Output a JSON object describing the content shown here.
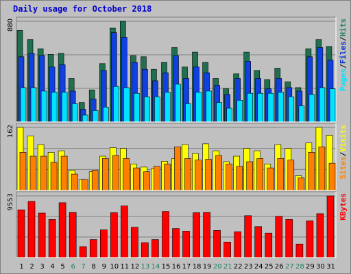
{
  "chart_data": {
    "type": "bar",
    "title": "Daily usage for October 2018",
    "categories": [
      "1",
      "2",
      "3",
      "4",
      "5",
      "6",
      "7",
      "8",
      "9",
      "10",
      "11",
      "12",
      "13",
      "14",
      "15",
      "16",
      "17",
      "18",
      "19",
      "20",
      "21",
      "22",
      "23",
      "24",
      "25",
      "26",
      "27",
      "28",
      "29",
      "30",
      "31"
    ],
    "weekend_days": [
      "6",
      "7",
      "13",
      "14",
      "20",
      "21",
      "27",
      "28"
    ],
    "panels": [
      {
        "name": "top",
        "ymax_label": "880",
        "ymax": 880,
        "right_labels": [
          "Pages",
          "/",
          "Files",
          "/",
          "Hits"
        ],
        "right_label_colors": [
          "#00e0ff",
          "#000000",
          "#0033cc",
          "#000000",
          "#208060"
        ],
        "series": [
          {
            "name": "Hits",
            "color": "#207050",
            "values": [
              800,
              720,
              640,
              590,
              600,
              380,
              170,
              280,
              510,
              820,
              880,
              580,
              570,
              460,
              520,
              650,
              480,
              610,
              520,
              380,
              290,
              420,
              610,
              450,
              370,
              470,
              350,
              300,
              640,
              720,
              660
            ]
          },
          {
            "name": "Files",
            "color": "#1040e0",
            "values": [
              570,
              600,
              580,
              480,
              500,
              270,
              110,
              200,
              450,
              780,
              740,
              520,
              460,
              360,
              430,
              580,
              380,
              480,
              430,
              320,
              240,
              380,
              530,
              380,
              290,
              380,
              300,
              270,
              570,
              650,
              540
            ]
          },
          {
            "name": "Pages",
            "color": "#00e0ff",
            "values": [
              300,
              300,
              270,
              260,
              260,
              160,
              60,
              100,
              130,
              310,
              300,
              250,
              220,
              220,
              260,
              330,
              160,
              260,
              270,
              170,
              120,
              190,
              250,
              250,
              250,
              260,
              220,
              140,
              240,
              300,
              290
            ]
          }
        ]
      },
      {
        "name": "middle",
        "ymax_label": "162",
        "ymax": 162,
        "right_labels": [
          "Sites",
          "/",
          "Visits"
        ],
        "right_label_colors": [
          "#ff8000",
          "#000000",
          "#ffff00"
        ],
        "series": [
          {
            "name": "Visits",
            "color": "#ffff00",
            "values": [
              162,
              140,
              118,
              98,
              102,
              52,
              28,
              48,
              88,
              110,
              108,
              68,
              60,
              56,
              75,
              82,
              118,
              95,
              120,
              102,
              74,
              88,
              108,
              102,
              68,
              118,
              108,
              38,
              122,
              162,
              142
            ]
          },
          {
            "name": "Sites",
            "color": "#ff8000",
            "values": [
              98,
              88,
              88,
              72,
              88,
              42,
              28,
              52,
              82,
              90,
              82,
              58,
              48,
              62,
              68,
              112,
              82,
              78,
              80,
              90,
              68,
              62,
              74,
              82,
              58,
              82,
              78,
              32,
              98,
              112,
              70
            ]
          }
        ]
      },
      {
        "name": "bottom",
        "ymax_label": "9553",
        "ymax": 9553,
        "right_labels": [
          "KBytes"
        ],
        "right_label_colors": [
          "#ff0000"
        ],
        "series": [
          {
            "name": "KBytes",
            "color": "#ff0000",
            "values": [
              7400,
              8700,
              6900,
              5900,
              8500,
              7000,
              1700,
              2800,
              4300,
              6950,
              8000,
              4700,
              2300,
              2800,
              7150,
              4500,
              4100,
              6950,
              7000,
              4200,
              2400,
              4000,
              6500,
              4800,
              3800,
              6400,
              5900,
              2100,
              5700,
              6800,
              9553
            ]
          }
        ]
      }
    ]
  }
}
